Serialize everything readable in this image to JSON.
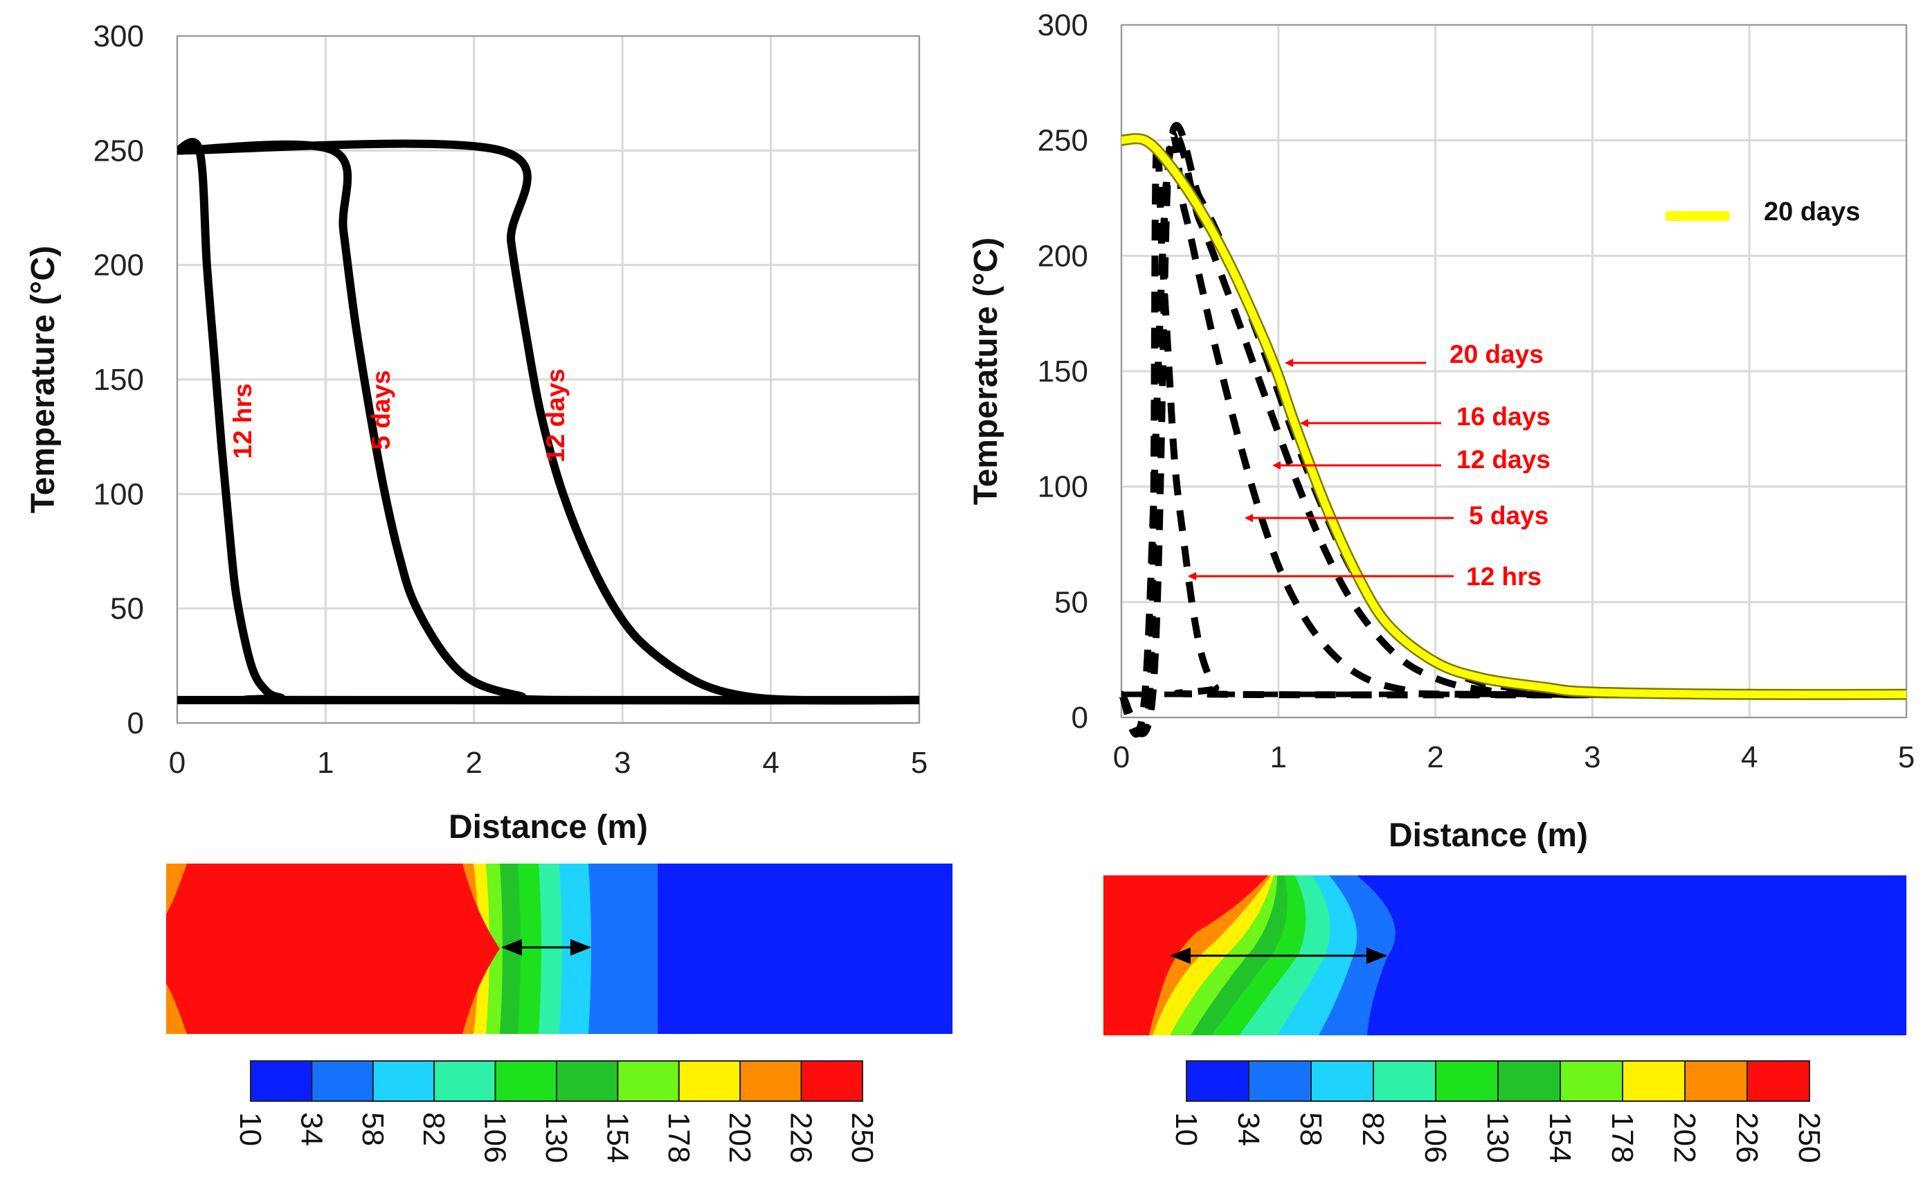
{
  "chart_data": [
    {
      "type": "line",
      "xlabel": "Distance (m)",
      "ylabel": "Temperature (°C)",
      "xlim": [
        0,
        5
      ],
      "ylim": [
        0,
        300
      ],
      "xticks": [
        "0",
        "1",
        "2",
        "3",
        "4",
        "5"
      ],
      "yticks": [
        "0",
        "50",
        "100",
        "150",
        "200",
        "250",
        "300"
      ],
      "grid": true,
      "series": [
        {
          "name": "12 hrs",
          "style": "solid",
          "x": [
            0,
            0.15,
            0.2,
            0.25,
            0.3,
            0.35,
            0.4,
            0.5,
            0.6,
            0.7,
            0.8,
            5
          ],
          "y": [
            250,
            250,
            200,
            160,
            120,
            85,
            55,
            25,
            14,
            11,
            10,
            10
          ]
        },
        {
          "name": "5 days",
          "style": "solid",
          "x": [
            0,
            1.05,
            1.12,
            1.2,
            1.3,
            1.4,
            1.5,
            1.6,
            1.8,
            2.0,
            2.3,
            2.6,
            5
          ],
          "y": [
            250,
            250,
            215,
            175,
            135,
            100,
            72,
            52,
            30,
            18,
            12,
            10,
            10
          ]
        },
        {
          "name": "12 days",
          "style": "solid",
          "x": [
            0,
            2.18,
            2.25,
            2.35,
            2.45,
            2.6,
            2.8,
            3.0,
            3.2,
            3.5,
            3.8,
            4.2,
            5
          ],
          "y": [
            250,
            250,
            210,
            170,
            135,
            100,
            68,
            45,
            31,
            18,
            12,
            10,
            10
          ]
        }
      ],
      "annotations": [
        "12 hrs",
        "5 days",
        "12 days"
      ],
      "contour": {
        "colorbar_ticks": [
          "10",
          "34",
          "58",
          "82",
          "106",
          "130",
          "154",
          "178",
          "202",
          "226",
          "250"
        ],
        "colorbar_colors": [
          "#0a1fff",
          "#1773ff",
          "#1fd3ff",
          "#2ef0a6",
          "#1ee11e",
          "#22c32a",
          "#6ef51a",
          "#fff200",
          "#ff8c00",
          "#ff0d0d"
        ]
      }
    },
    {
      "type": "line",
      "xlabel": "Distance (m)",
      "ylabel": "Temperature (°C)",
      "xlim": [
        0,
        5
      ],
      "ylim": [
        0,
        300
      ],
      "xticks": [
        "0",
        "1",
        "2",
        "3",
        "4",
        "5"
      ],
      "yticks": [
        "0",
        "50",
        "100",
        "150",
        "200",
        "250",
        "300"
      ],
      "grid": true,
      "legend": {
        "label": "20 days",
        "color": "#ffff00",
        "placement": "top-right"
      },
      "series": [
        {
          "name": "12 hrs",
          "style": "dashed",
          "x": [
            0,
            0.18,
            0.22,
            0.26,
            0.3,
            0.34,
            0.4,
            0.46,
            0.52,
            0.6,
            0.7,
            5
          ],
          "y": [
            10,
            10,
            240,
            200,
            155,
            110,
            75,
            45,
            25,
            13,
            10,
            10
          ]
        },
        {
          "name": "5 days",
          "style": "dashed",
          "x": [
            0,
            0.2,
            0.3,
            0.4,
            0.5,
            0.6,
            0.75,
            0.9,
            1.05,
            1.25,
            1.5,
            1.8,
            2.2,
            5
          ],
          "y": [
            10,
            10,
            240,
            220,
            190,
            160,
            120,
            85,
            58,
            35,
            19,
            12,
            10,
            10
          ]
        },
        {
          "name": "12 days",
          "style": "dashed",
          "x": [
            0,
            0.15,
            0.3,
            0.5,
            0.7,
            0.9,
            1.1,
            1.3,
            1.5,
            1.75,
            2.0,
            2.3,
            2.8,
            5
          ],
          "y": [
            10,
            10,
            240,
            215,
            180,
            142,
            105,
            72,
            47,
            27,
            17,
            12,
            10,
            10
          ]
        },
        {
          "name": "16 days",
          "style": "dashed",
          "x": [
            0,
            0.15,
            0.3,
            0.5,
            0.7,
            0.9,
            1.1,
            1.3,
            1.5,
            1.75,
            2.0,
            2.3,
            2.8,
            3.2,
            5
          ],
          "y": [
            10,
            10,
            243,
            225,
            196,
            160,
            122,
            88,
            60,
            37,
            24,
            15,
            11,
            10,
            10
          ]
        },
        {
          "name": "20 days",
          "style": "solid-yellow",
          "x": [
            0,
            0.15,
            0.3,
            0.5,
            0.7,
            0.9,
            1.0,
            1.1,
            1.3,
            1.5,
            1.7,
            2.0,
            2.3,
            2.7,
            3.0,
            4.0,
            5
          ],
          "y": [
            250,
            250,
            240,
            220,
            195,
            165,
            148,
            128,
            92,
            62,
            40,
            24,
            17,
            13,
            11,
            10,
            10
          ]
        }
      ],
      "annotations": [
        {
          "text": "20 days",
          "points_to": {
            "x": 1.05,
            "y": 155
          }
        },
        {
          "text": "16 days",
          "points_to": {
            "x": 1.15,
            "y": 128
          }
        },
        {
          "text": "12 days",
          "points_to": {
            "x": 1.0,
            "y": 110
          }
        },
        {
          "text": "5 days",
          "points_to": {
            "x": 0.8,
            "y": 85
          }
        },
        {
          "text": "12 hrs",
          "points_to": {
            "x": 0.45,
            "y": 62
          }
        }
      ],
      "contour": {
        "colorbar_ticks": [
          "10",
          "34",
          "58",
          "82",
          "106",
          "130",
          "154",
          "178",
          "202",
          "226",
          "250"
        ],
        "colorbar_colors": [
          "#0a1fff",
          "#1773ff",
          "#1fd3ff",
          "#2ef0a6",
          "#1ee11e",
          "#22c32a",
          "#6ef51a",
          "#fff200",
          "#ff8c00",
          "#ff0d0d"
        ]
      }
    }
  ]
}
